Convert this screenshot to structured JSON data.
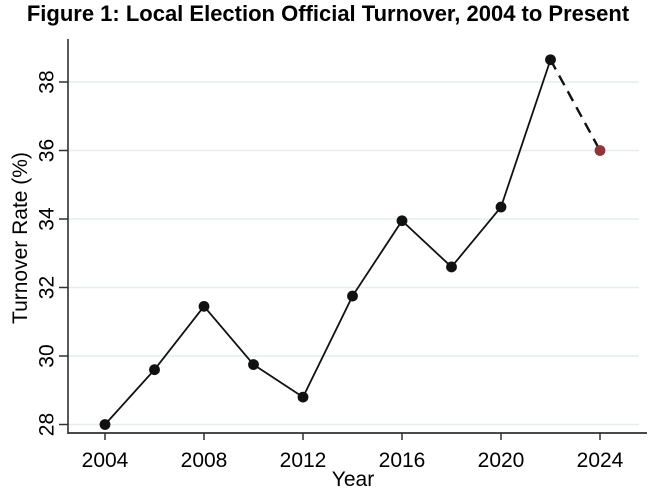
{
  "title": "Figure 1: Local Election Official Turnover, 2004 to Present",
  "chart_data": {
    "type": "line",
    "title": "Figure 1: Local Election Official Turnover, 2004 to Present",
    "xlabel": "Year",
    "ylabel": "Turnover Rate (%)",
    "xlim": [
      2002.5,
      2025.9
    ],
    "ylim": [
      27.75,
      39.3
    ],
    "xticks": [
      2004,
      2008,
      2012,
      2016,
      2020,
      2024
    ],
    "yticks": [
      28,
      30,
      32,
      34,
      36,
      38
    ],
    "grid": "horizontal",
    "legend": "none",
    "series": [
      {
        "name": "observed-turnover",
        "style": "solid",
        "line_color": "#111111",
        "marker_color": "#111111",
        "x": [
          2004,
          2006,
          2008,
          2010,
          2012,
          2014,
          2016,
          2018,
          2020,
          2022
        ],
        "y": [
          28.0,
          29.6,
          31.45,
          29.75,
          28.8,
          31.75,
          33.95,
          32.6,
          34.35,
          38.65
        ]
      },
      {
        "name": "projected-turnover",
        "style": "dashed",
        "line_color": "#111111",
        "marker_color": "#90353B",
        "x": [
          2022,
          2024
        ],
        "y": [
          38.65,
          36.0
        ]
      }
    ],
    "colors": {
      "gridline": "#e4eef0",
      "axis": "#303030",
      "background": "#ffffff",
      "observed_point": "#111111",
      "projected_point": "#90353B"
    }
  }
}
